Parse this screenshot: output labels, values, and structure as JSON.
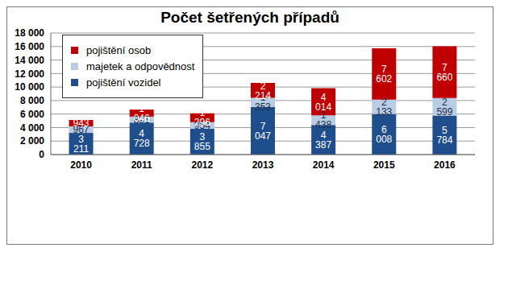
{
  "chart_data": {
    "type": "bar",
    "title": "Počet šetřených případů",
    "categories": [
      "2010",
      "2011",
      "2012",
      "2013",
      "2014",
      "2015",
      "2016"
    ],
    "stacked": true,
    "data_labels": true,
    "grid": true,
    "legend": "upper left",
    "ylim": [
      0,
      18000
    ],
    "yticks": [
      0,
      {
        "value": 2000,
        "label": "2 000"
      },
      {
        "value": 4000,
        "label": "4 000"
      },
      {
        "value": 6000,
        "label": "6 000"
      },
      {
        "value": 8000,
        "label": "8 000"
      },
      {
        "value": 10000,
        "label": "10 000"
      },
      {
        "value": 12000,
        "label": "12 000"
      },
      {
        "value": 14000,
        "label": "14 000"
      },
      {
        "value": 16000,
        "label": "16 000"
      },
      {
        "value": 18000,
        "label": "18 000"
      }
    ],
    "series": [
      {
        "name": "pojištění vozidel",
        "color": "#1f4e8c",
        "values": [
          3211,
          4728,
          3855,
          7047,
          4387,
          6008,
          5784
        ],
        "value_labels": [
          "3 211",
          "4 728",
          "3 855",
          "7 047",
          "4 387",
          "6 008",
          "5 784"
        ]
      },
      {
        "name": "majetek a odpovědnost",
        "color": "#b8cce4",
        "values": [
          967,
          891,
          954,
          1353,
          1438,
          2133,
          2599
        ],
        "value_labels": [
          "967",
          "891",
          "954",
          "1 353",
          "1 438",
          "2 133",
          "2 599"
        ]
      },
      {
        "name": "pojištění osob",
        "color": "#c00000",
        "values": [
          943,
          1046,
          1296,
          2214,
          4014,
          7602,
          7660
        ],
        "value_labels": [
          "943",
          "1 046",
          "1 296",
          "2 214",
          "4 014",
          "7 602",
          "7 660"
        ]
      }
    ]
  }
}
